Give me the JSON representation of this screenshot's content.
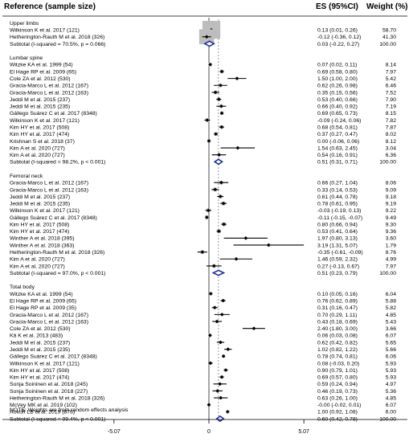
{
  "chart_data": {
    "type": "forest",
    "headers": {
      "study": "Reference (sample size)",
      "es": "ES (95%CI)",
      "weight": "Weight (%)"
    },
    "x_ticks": [
      "-5.07",
      "0",
      "5.07"
    ],
    "xlim": [
      -5.07,
      5.07
    ],
    "null_value": 0,
    "note": "NOTE: Weights are from random effects analysis",
    "groups": [
      {
        "name": "Upper limbs",
        "studies": [
          {
            "label": "Wilkinson K et al. 2017 (121)",
            "es": 0.13,
            "lo": 0.01,
            "hi": 0.26,
            "ci_text": "0.13 (0.01, 0.26)",
            "weight": 58.7,
            "weight_text": "58.70"
          },
          {
            "label": "Hetherington-Rauth M et al. 2018 (326)",
            "es": -0.12,
            "lo": -0.36,
            "hi": 0.12,
            "ci_text": "-0.12 (-0.36, 0.12)",
            "weight": 41.3,
            "weight_text": "41.30"
          }
        ],
        "subtotal": {
          "label": "Subtotal  (I-squared = 70.5%, p = 0.066)",
          "es": 0.03,
          "lo": -0.22,
          "hi": 0.27,
          "ci_text": "0.03 (-0.22, 0.27)",
          "weight_text": "100.00"
        }
      },
      {
        "name": "Lumbar spine",
        "studies": [
          {
            "label": "Witzke KA et al. 1999 (54)",
            "es": 0.07,
            "lo": 0.02,
            "hi": 0.11,
            "ci_text": "0.07 (0.02, 0.11)",
            "weight": 8.14,
            "weight_text": "8.14"
          },
          {
            "label": "El Hage RP et al. 2009 (65)",
            "es": 0.69,
            "lo": 0.58,
            "hi": 0.8,
            "ci_text": "0.69 (0.58, 0.80)",
            "weight": 7.97,
            "weight_text": "7.97"
          },
          {
            "label": "Cole ZA et al. 2012 (530)",
            "es": 1.5,
            "lo": 1.0,
            "hi": 2.0,
            "ci_text": "1.50 (1.00, 2.00)",
            "weight": 5.42,
            "weight_text": "5.42"
          },
          {
            "label": "Gracia-Marco L et al. 2012 (167)",
            "es": 0.62,
            "lo": 0.26,
            "hi": 0.98,
            "ci_text": "0.62 (0.26, 0.98)",
            "weight": 6.46,
            "weight_text": "6.46"
          },
          {
            "label": "Gracia-Marco L et al. 2012 (163)",
            "es": 0.35,
            "lo": 0.15,
            "hi": 0.56,
            "ci_text": "0.35 (0.15, 0.56)",
            "weight": 7.52,
            "weight_text": "7.52"
          },
          {
            "label": "Jeddi M et al. 2015 (237)",
            "es": 0.53,
            "lo": 0.4,
            "hi": 0.66,
            "ci_text": "0.53 (0.40, 0.66)",
            "weight": 7.9,
            "weight_text": "7.90"
          },
          {
            "label": "Jeddi M et al. 2015 (235)",
            "es": 0.66,
            "lo": 0.4,
            "hi": 0.92,
            "ci_text": "0.66 (0.40, 0.92)",
            "weight": 7.19,
            "weight_text": "7.19"
          },
          {
            "label": "Gállego Suárez C et al. 2017 (8348)",
            "es": 0.69,
            "lo": 0.65,
            "hi": 0.73,
            "ci_text": "0.69 (0.65, 0.73)",
            "weight": 8.15,
            "weight_text": "8.15"
          },
          {
            "label": "Wilkinson K et al. 2017 (121)",
            "es": -0.09,
            "lo": -0.24,
            "hi": 0.06,
            "ci_text": "-0.09 (-0.24, 0.06)",
            "weight": 7.82,
            "weight_text": "7.82"
          },
          {
            "label": "Kim HY et al. 2017 (508)",
            "es": 0.68,
            "lo": 0.54,
            "hi": 0.81,
            "ci_text": "0.68 (0.54, 0.81)",
            "weight": 7.87,
            "weight_text": "7.87"
          },
          {
            "label": "Kim HY et al. 2017 (474)",
            "es": 0.37,
            "lo": 0.27,
            "hi": 0.47,
            "ci_text": "0.37 (0.27, 0.47)",
            "weight": 8.02,
            "weight_text": "8.02"
          },
          {
            "label": "Krishnan S et al. 2018 (37)",
            "es": 0.0,
            "lo": -0.06,
            "hi": 0.06,
            "ci_text": "0.00 (-0.06, 0.06)",
            "weight": 8.12,
            "weight_text": "8.12"
          },
          {
            "label": "Kim A et al. 2020 (727)",
            "es": 1.54,
            "lo": 0.63,
            "hi": 2.45,
            "ci_text": "1.54 (0.63, 2.45)",
            "weight": 3.04,
            "weight_text": "3.04"
          },
          {
            "label": "Kim A et al. 2020 (727)",
            "es": 0.54,
            "lo": 0.16,
            "hi": 0.91,
            "ci_text": "0.54 (0.16, 0.91)",
            "weight": 6.36,
            "weight_text": "6.36"
          }
        ],
        "subtotal": {
          "label": "Subtotal  (I-squared = 98.2%, p < 0.001)",
          "es": 0.51,
          "lo": 0.31,
          "hi": 0.71,
          "ci_text": "0.51 (0.31, 0.71)",
          "weight_text": "100.00"
        }
      },
      {
        "name": "Femoral neck",
        "studies": [
          {
            "label": "Gracia-Marco L et al. 2012 (167)",
            "es": 0.66,
            "lo": 0.27,
            "hi": 1.04,
            "ci_text": "0.66 (0.27, 1.04)",
            "weight": 8.06,
            "weight_text": "8.06"
          },
          {
            "label": "Gracia-Marco L et al. 2012 (163)",
            "es": 0.33,
            "lo": 0.14,
            "hi": 0.53,
            "ci_text": "0.33 (0.14, 0.53)",
            "weight": 9.09,
            "weight_text": "9.09"
          },
          {
            "label": "Jeddi M et al. 2015 (237)",
            "es": 0.61,
            "lo": 0.44,
            "hi": 0.78,
            "ci_text": "0.61 (0.44, 0.78)",
            "weight": 9.18,
            "weight_text": "9.18"
          },
          {
            "label": "Jeddi M et al. 2015 (235)",
            "es": 0.78,
            "lo": 0.61,
            "hi": 0.95,
            "ci_text": "0.78 (0.61, 0.95)",
            "weight": 9.19,
            "weight_text": "9.19"
          },
          {
            "label": "Wilkinson K et al. 2017 (121)",
            "es": -0.03,
            "lo": -0.19,
            "hi": 0.13,
            "ci_text": "-0.03 (-0.19, 0.13)",
            "weight": 9.22,
            "weight_text": "9.22"
          },
          {
            "label": "Gállego Suárez C et al. 2017 (8348)",
            "es": -0.11,
            "lo": -0.15,
            "hi": -0.07,
            "ci_text": "-0.11 (-0.15, -0.07)",
            "weight": 9.49,
            "weight_text": "9.49"
          },
          {
            "label": "Kim HY et al. 2017 (508)",
            "es": 0.8,
            "lo": 0.66,
            "hi": 0.94,
            "ci_text": "0.80 (0.66, 0.94)",
            "weight": 9.3,
            "weight_text": "9.30"
          },
          {
            "label": "Kim HY et al. 2017 (474)",
            "es": 0.53,
            "lo": 0.41,
            "hi": 0.64,
            "ci_text": "0.53 (0.41, 0.64)",
            "weight": 9.36,
            "weight_text": "9.36"
          },
          {
            "label": "Winther A et al. 2018 (395)",
            "es": 1.97,
            "lo": 0.8,
            "hi": 3.13,
            "ci_text": "1.97 (0.80, 3.13)",
            "weight": 3.6,
            "weight_text": "3.60"
          },
          {
            "label": "Winther A et al. 2018 (363)",
            "es": 3.19,
            "lo": 1.31,
            "hi": 5.07,
            "ci_text": "3.19 (1.31, 5.07)",
            "weight": 1.79,
            "weight_text": "1.79"
          },
          {
            "label": "Hetherington-Rauth M et al. 2018 (326)",
            "es": -0.35,
            "lo": -0.61,
            "hi": -0.09,
            "ci_text": "-0.35 (-0.61, -0.09)",
            "weight": 8.76,
            "weight_text": "8.76"
          },
          {
            "label": "Kim A et al. 2020 (727)",
            "es": 1.46,
            "lo": 0.59,
            "hi": 2.32,
            "ci_text": "1.46 (0.59, 2.32)",
            "weight": 4.99,
            "weight_text": "4.99"
          },
          {
            "label": "Kim A et al. 2020 (727)",
            "es": 0.27,
            "lo": -0.13,
            "hi": 0.67,
            "ci_text": "0.27 (-0.13, 0.67)",
            "weight": 7.97,
            "weight_text": "7.97"
          }
        ],
        "subtotal": {
          "label": "Subtotal  (I-squared = 97.0%, p < 0.001)",
          "es": 0.51,
          "lo": 0.23,
          "hi": 0.79,
          "ci_text": "0.51 (0.23, 0.79)",
          "weight_text": "100.00"
        }
      },
      {
        "name": "Total body",
        "studies": [
          {
            "label": "Witzke KA et al. 1999 (54)",
            "es": 0.1,
            "lo": 0.05,
            "hi": 0.16,
            "ci_text": "0.10 (0.05, 0.16)",
            "weight": 6.04,
            "weight_text": "6.04"
          },
          {
            "label": "El Hage RP et al. 2009 (65)",
            "es": 0.76,
            "lo": 0.62,
            "hi": 0.89,
            "ci_text": "0.76 (0.62, 0.89)",
            "weight": 5.88,
            "weight_text": "5.88"
          },
          {
            "label": "El Hage RP et al. 2009 (35)",
            "es": 0.31,
            "lo": 0.16,
            "hi": 0.47,
            "ci_text": "0.31 (0.16, 0.47)",
            "weight": 5.82,
            "weight_text": "5.82"
          },
          {
            "label": "Gracia-Marco L et al. 2012 (167)",
            "es": 0.7,
            "lo": 0.29,
            "hi": 1.11,
            "ci_text": "0.70 (0.29, 1.11)",
            "weight": 4.85,
            "weight_text": "4.85"
          },
          {
            "label": "Gracia-Marco L et al. 2012 (163)",
            "es": 0.43,
            "lo": 0.18,
            "hi": 0.69,
            "ci_text": "0.43 (0.18, 0.69)",
            "weight": 5.43,
            "weight_text": "5.43"
          },
          {
            "label": "Cole ZA et al. 2012 (530)",
            "es": 2.4,
            "lo": 1.8,
            "hi": 3.0,
            "ci_text": "2.40 (1.80, 3.00)",
            "weight": 3.66,
            "weight_text": "3.66"
          },
          {
            "label": "Kâ K et al. 2013 (483)",
            "es": 0.06,
            "lo": 0.03,
            "hi": 0.08,
            "ci_text": "0.06 (0.03, 0.08)",
            "weight": 6.07,
            "weight_text": "6.07"
          },
          {
            "label": "Jeddi M et al. 2015 (237)",
            "es": 0.62,
            "lo": 0.42,
            "hi": 0.82,
            "ci_text": "0.62 (0.42, 0.82)",
            "weight": 5.65,
            "weight_text": "5.65"
          },
          {
            "label": "Jeddi M et al. 2015 (235)",
            "es": 1.02,
            "lo": 0.82,
            "hi": 1.22,
            "ci_text": "1.02 (0.82, 1.22)",
            "weight": 5.66,
            "weight_text": "5.66"
          },
          {
            "label": "Gállego Suárez C et al. 2017 (8348)",
            "es": 0.78,
            "lo": 0.74,
            "hi": 0.81,
            "ci_text": "0.78 (0.74, 0.81)",
            "weight": 6.06,
            "weight_text": "6.06"
          },
          {
            "label": "Wilkinson K et al. 2017 (121)",
            "es": 0.08,
            "lo": -0.03,
            "hi": 0.2,
            "ci_text": "0.08 (-0.03, 0.20)",
            "weight": 5.93,
            "weight_text": "5.93"
          },
          {
            "label": "Kim HY et al. 2017 (508)",
            "es": 0.9,
            "lo": 0.79,
            "hi": 1.01,
            "ci_text": "0.90 (0.79, 1.01)",
            "weight": 5.93,
            "weight_text": "5.93"
          },
          {
            "label": "Kim HY et al. 2017 (474)",
            "es": 0.69,
            "lo": 0.57,
            "hi": 0.8,
            "ci_text": "0.69 (0.57, 0.80)",
            "weight": 5.93,
            "weight_text": "5.93"
          },
          {
            "label": "Sonja Soininen et al. 2018 (245)",
            "es": 0.59,
            "lo": 0.24,
            "hi": 0.94,
            "ci_text": "0.59 (0.24, 0.94)",
            "weight": 4.97,
            "weight_text": "4.97"
          },
          {
            "label": "Sonja Soininen et al. 2018 (227)",
            "es": 0.46,
            "lo": 0.19,
            "hi": 0.73,
            "ci_text": "0.46 (0.19, 0.73)",
            "weight": 5.36,
            "weight_text": "5.36"
          },
          {
            "label": "Hetherington-Rauth M et al. 2018 (326)",
            "es": 0.63,
            "lo": 0.26,
            "hi": 1.0,
            "ci_text": "0.63 (0.26, 1.00)",
            "weight": 4.85,
            "weight_text": "4.85"
          },
          {
            "label": "McVey MK et al. 2019 (102)",
            "es": -0.0,
            "lo": -0.02,
            "hi": 0.01,
            "ci_text": "-0.00 (-0.02, 0.01)",
            "weight": 6.07,
            "weight_text": "6.07"
          },
          {
            "label": "Rokoff LB et al. 2019 (876)",
            "es": 1.0,
            "lo": 0.92,
            "hi": 1.08,
            "ci_text": "1.00 (0.92, 1.08)",
            "weight": 6.0,
            "weight_text": "6.00"
          }
        ],
        "subtotal": {
          "label": "Subtotal  (I-squared = 99.4%, p < 0.001)",
          "es": 0.6,
          "lo": 0.42,
          "hi": 0.78,
          "ci_text": "0.60 (0.42, 0.78)",
          "weight_text": "100.00"
        }
      }
    ]
  }
}
